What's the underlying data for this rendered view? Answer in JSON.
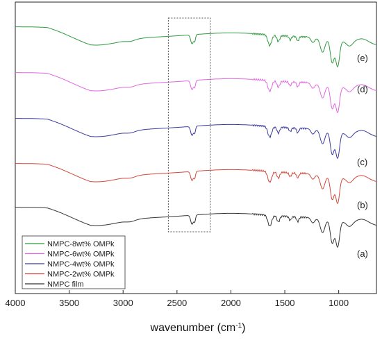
{
  "chart_data": {
    "type": "line",
    "xlabel": "wavenumber (cm",
    "xlabel_sup": "-1",
    "xlabel_end": ")",
    "ylabel": "",
    "xlim": [
      4000,
      650
    ],
    "x_reversed": true,
    "x_ticks": [
      4000,
      3500,
      3000,
      2500,
      2000,
      1500,
      1000
    ],
    "y_ticks": "none",
    "grid": false,
    "legend_position": "bottom-left",
    "highlight_box": {
      "x_from": 2580,
      "x_to": 2190,
      "style": "dotted"
    },
    "series": [
      {
        "name": "NMPC-8wt% OMPk",
        "label": "(e)",
        "color": "#2e9a3e",
        "offset": 4
      },
      {
        "name": "NMPC-6wt% OMPk",
        "label": "(d)",
        "color": "#e066e0",
        "offset": 3
      },
      {
        "name": "NMPC-4wt% OMPk",
        "label": "(c)",
        "color": "#3a3a9e",
        "offset": 2
      },
      {
        "name": "NMPC-2wt% OMPk",
        "label": "(b)",
        "color": "#d0483a",
        "offset": 1
      },
      {
        "name": "NMPC film",
        "label": "(a)",
        "color": "#333333",
        "offset": 0
      }
    ]
  }
}
